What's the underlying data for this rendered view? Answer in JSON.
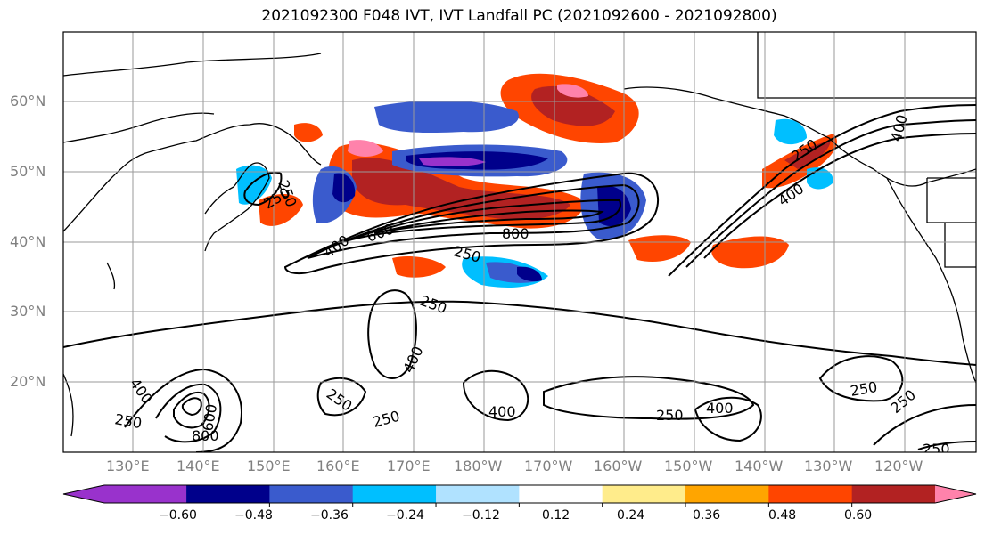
{
  "title": "2021092300 F048 IVT, IVT Landfall PC (2021092600 - 2021092800)",
  "lat_ticks": [
    "60°N",
    "50°N",
    "40°N",
    "30°N",
    "20°N"
  ],
  "lon_ticks": [
    "130°E",
    "140°E",
    "150°E",
    "160°E",
    "170°E",
    "180°W",
    "170°W",
    "160°W",
    "150°W",
    "140°W",
    "130°W",
    "120°W"
  ],
  "colorbar": {
    "colors": [
      "#9932cc",
      "#00008b",
      "#3a5bcd",
      "#00bfff",
      "#b0e2ff",
      "#ffffff",
      "#ffec8b",
      "#ffa500",
      "#ff4500",
      "#b22222",
      "#ff82ab"
    ],
    "labels": [
      "−0.60",
      "−0.48",
      "−0.36",
      "−0.24",
      "−0.12",
      "0.12",
      "0.24",
      "0.36",
      "0.48",
      "0.60"
    ]
  },
  "contour_labels": [
    "250",
    "400",
    "600",
    "800",
    "250",
    "250",
    "400",
    "250",
    "400",
    "250",
    "250",
    "400",
    "250",
    "800",
    "600",
    "400",
    "250",
    "250",
    "250",
    "250"
  ],
  "line_labels": [
    "400",
    "250",
    "400"
  ]
}
